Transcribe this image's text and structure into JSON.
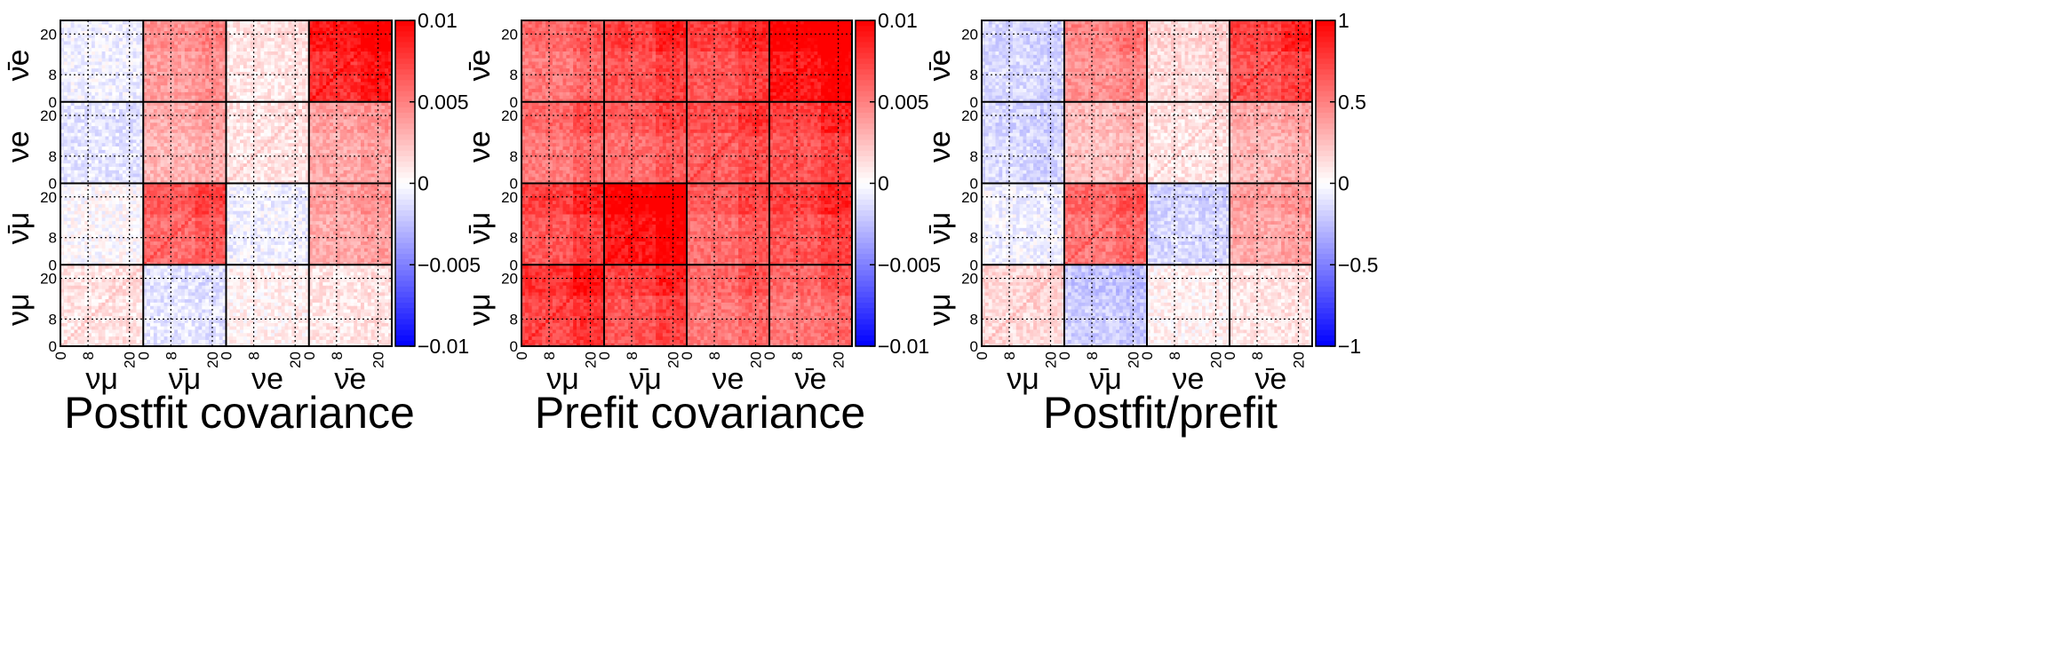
{
  "chart_data": [
    {
      "type": "heatmap",
      "title": "Postfit covariance",
      "flavor_blocks": [
        "νμ",
        "ν̄μ",
        "νe",
        "ν̄e"
      ],
      "block_ticks": [
        "0",
        "8",
        "20"
      ],
      "colorbar": {
        "ticks": [
          "0.01",
          "0.005",
          "0",
          "−0.005",
          "−0.01"
        ],
        "range": [
          -0.01,
          0.01
        ],
        "low_color": "#0000ff",
        "mid_color": "#ffffff",
        "high_color": "#ff0000"
      },
      "block_intensity": [
        [
          0.1,
          -0.1,
          0.05,
          0.1
        ],
        [
          0.0,
          0.6,
          -0.05,
          0.35
        ],
        [
          -0.1,
          0.3,
          0.1,
          0.35
        ],
        [
          -0.05,
          0.4,
          0.1,
          0.85
        ]
      ]
    },
    {
      "type": "heatmap",
      "title": "Prefit covariance",
      "flavor_blocks": [
        "νμ",
        "ν̄μ",
        "νe",
        "ν̄e"
      ],
      "block_ticks": [
        "0",
        "8",
        "20"
      ],
      "colorbar": {
        "ticks": [
          "0.01",
          "0.005",
          "0",
          "−0.005",
          "−0.01"
        ],
        "range": [
          -0.01,
          0.01
        ],
        "low_color": "#0000ff",
        "mid_color": "#ffffff",
        "high_color": "#ff0000"
      },
      "block_intensity": [
        [
          0.75,
          0.7,
          0.55,
          0.55
        ],
        [
          0.7,
          0.95,
          0.6,
          0.7
        ],
        [
          0.55,
          0.6,
          0.65,
          0.7
        ],
        [
          0.55,
          0.7,
          0.7,
          0.95
        ]
      ]
    },
    {
      "type": "heatmap",
      "title": "Postfit/prefit",
      "flavor_blocks": [
        "νμ",
        "ν̄μ",
        "νe",
        "ν̄e"
      ],
      "block_ticks": [
        "0",
        "8",
        "20"
      ],
      "colorbar": {
        "ticks": [
          "1",
          "0.5",
          "0",
          "−0.5",
          "−1"
        ],
        "range": [
          -1,
          1
        ],
        "low_color": "#0000ff",
        "mid_color": "#ffffff",
        "high_color": "#ff0000"
      },
      "block_intensity": [
        [
          0.15,
          -0.2,
          0.05,
          0.1
        ],
        [
          -0.05,
          0.55,
          -0.15,
          0.35
        ],
        [
          -0.15,
          0.25,
          0.1,
          0.3
        ],
        [
          -0.15,
          0.45,
          0.15,
          0.7
        ]
      ]
    }
  ]
}
